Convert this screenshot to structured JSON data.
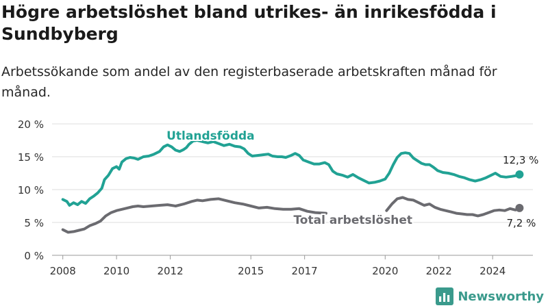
{
  "title": "Högre arbetslöshet bland utrikes- än inrikesfödda i Sundbyberg",
  "subtitle": "Arbetssökande som andel av den registerbaserade arbetskraften månad för månad.",
  "brand": {
    "name": "Newsworthy",
    "logo_icon": "bar-chart-icon"
  },
  "colors": {
    "foreign_born": "#21a294",
    "total": "#6b6b70",
    "grid": "#dddddd",
    "axis_text": "#333333"
  },
  "chart_data": {
    "type": "line",
    "title": "Högre arbetslöshet bland utrikes- än inrikesfödda i Sundbyberg",
    "xlabel": "",
    "ylabel": "",
    "xlim": [
      2007.6,
      2025.5
    ],
    "ylim": [
      0,
      20
    ],
    "y_ticks": [
      0,
      5,
      10,
      15,
      20
    ],
    "y_tick_labels": [
      "0 %",
      "5 %",
      "10 %",
      "15 %",
      "20 %"
    ],
    "x_ticks": [
      2008,
      2010,
      2012,
      2015,
      2017,
      2020,
      2022,
      2024
    ],
    "x_tick_labels": [
      "2008",
      "2010",
      "2012",
      "2015",
      "2017",
      "2020",
      "2022",
      "2024"
    ],
    "grid": true,
    "series": [
      {
        "name": "Utlandsfödda",
        "color": "#21a294",
        "end_label": "12,3 %",
        "points": [
          [
            2008.0,
            8.5
          ],
          [
            2008.15,
            8.2
          ],
          [
            2008.25,
            7.6
          ],
          [
            2008.4,
            8.0
          ],
          [
            2008.55,
            7.7
          ],
          [
            2008.7,
            8.2
          ],
          [
            2008.85,
            7.9
          ],
          [
            2009.0,
            8.6
          ],
          [
            2009.15,
            9.0
          ],
          [
            2009.3,
            9.5
          ],
          [
            2009.45,
            10.2
          ],
          [
            2009.55,
            11.5
          ],
          [
            2009.7,
            12.2
          ],
          [
            2009.85,
            13.2
          ],
          [
            2010.0,
            13.5
          ],
          [
            2010.1,
            13.1
          ],
          [
            2010.2,
            14.2
          ],
          [
            2010.35,
            14.7
          ],
          [
            2010.5,
            14.9
          ],
          [
            2010.65,
            14.8
          ],
          [
            2010.8,
            14.6
          ],
          [
            2011.0,
            15.0
          ],
          [
            2011.2,
            15.1
          ],
          [
            2011.4,
            15.4
          ],
          [
            2011.6,
            15.8
          ],
          [
            2011.75,
            16.5
          ],
          [
            2011.9,
            16.8
          ],
          [
            2012.05,
            16.5
          ],
          [
            2012.2,
            16.0
          ],
          [
            2012.35,
            15.8
          ],
          [
            2012.5,
            16.1
          ],
          [
            2012.6,
            16.4
          ],
          [
            2012.7,
            16.9
          ],
          [
            2012.85,
            17.4
          ],
          [
            2013.0,
            17.5
          ],
          [
            2013.2,
            17.3
          ],
          [
            2013.4,
            17.1
          ],
          [
            2013.6,
            17.3
          ],
          [
            2013.8,
            17.0
          ],
          [
            2014.0,
            16.7
          ],
          [
            2014.2,
            16.9
          ],
          [
            2014.4,
            16.6
          ],
          [
            2014.6,
            16.5
          ],
          [
            2014.75,
            16.2
          ],
          [
            2014.9,
            15.5
          ],
          [
            2015.05,
            15.1
          ],
          [
            2015.25,
            15.2
          ],
          [
            2015.45,
            15.3
          ],
          [
            2015.65,
            15.4
          ],
          [
            2015.8,
            15.1
          ],
          [
            2016.0,
            15.0
          ],
          [
            2016.15,
            15.0
          ],
          [
            2016.3,
            14.9
          ],
          [
            2016.5,
            15.2
          ],
          [
            2016.65,
            15.5
          ],
          [
            2016.8,
            15.2
          ],
          [
            2016.95,
            14.5
          ],
          [
            2017.15,
            14.2
          ],
          [
            2017.35,
            13.9
          ],
          [
            2017.55,
            13.9
          ],
          [
            2017.75,
            14.1
          ],
          [
            2017.9,
            13.8
          ],
          [
            2018.05,
            12.8
          ],
          [
            2018.2,
            12.4
          ],
          [
            2018.4,
            12.2
          ],
          [
            2018.6,
            11.9
          ],
          [
            2018.8,
            12.3
          ],
          [
            2019.0,
            11.8
          ],
          [
            2019.2,
            11.4
          ],
          [
            2019.4,
            11.0
          ],
          [
            2019.6,
            11.1
          ],
          [
            2019.8,
            11.3
          ],
          [
            2020.0,
            11.6
          ],
          [
            2020.15,
            12.5
          ],
          [
            2020.3,
            13.8
          ],
          [
            2020.45,
            14.9
          ],
          [
            2020.6,
            15.5
          ],
          [
            2020.75,
            15.6
          ],
          [
            2020.9,
            15.5
          ],
          [
            2021.05,
            14.8
          ],
          [
            2021.2,
            14.4
          ],
          [
            2021.35,
            14.0
          ],
          [
            2021.5,
            13.8
          ],
          [
            2021.65,
            13.8
          ],
          [
            2021.8,
            13.4
          ],
          [
            2021.95,
            12.9
          ],
          [
            2022.15,
            12.6
          ],
          [
            2022.35,
            12.5
          ],
          [
            2022.55,
            12.3
          ],
          [
            2022.75,
            12.0
          ],
          [
            2022.95,
            11.8
          ],
          [
            2023.15,
            11.5
          ],
          [
            2023.35,
            11.3
          ],
          [
            2023.55,
            11.5
          ],
          [
            2023.75,
            11.8
          ],
          [
            2023.95,
            12.2
          ],
          [
            2024.1,
            12.5
          ],
          [
            2024.3,
            12.0
          ],
          [
            2024.5,
            11.9
          ],
          [
            2024.7,
            12.0
          ],
          [
            2024.85,
            12.1
          ],
          [
            2025.0,
            12.3
          ]
        ]
      },
      {
        "name": "Total arbetslöshet",
        "color": "#6b6b70",
        "end_label": "7,2 %",
        "points": [
          [
            2008.0,
            3.9
          ],
          [
            2008.2,
            3.5
          ],
          [
            2008.4,
            3.6
          ],
          [
            2008.6,
            3.8
          ],
          [
            2008.8,
            4.0
          ],
          [
            2009.0,
            4.5
          ],
          [
            2009.2,
            4.8
          ],
          [
            2009.4,
            5.2
          ],
          [
            2009.6,
            6.0
          ],
          [
            2009.8,
            6.5
          ],
          [
            2010.0,
            6.8
          ],
          [
            2010.2,
            7.0
          ],
          [
            2010.4,
            7.2
          ],
          [
            2010.6,
            7.4
          ],
          [
            2010.8,
            7.5
          ],
          [
            2011.0,
            7.4
          ],
          [
            2011.3,
            7.5
          ],
          [
            2011.6,
            7.6
          ],
          [
            2011.9,
            7.7
          ],
          [
            2012.2,
            7.5
          ],
          [
            2012.5,
            7.8
          ],
          [
            2012.8,
            8.2
          ],
          [
            2013.0,
            8.4
          ],
          [
            2013.2,
            8.3
          ],
          [
            2013.5,
            8.5
          ],
          [
            2013.8,
            8.6
          ],
          [
            2014.1,
            8.3
          ],
          [
            2014.4,
            8.0
          ],
          [
            2014.7,
            7.8
          ],
          [
            2015.0,
            7.5
          ],
          [
            2015.3,
            7.2
          ],
          [
            2015.6,
            7.3
          ],
          [
            2015.9,
            7.1
          ],
          [
            2016.2,
            7.0
          ],
          [
            2016.5,
            7.0
          ],
          [
            2016.8,
            7.1
          ],
          [
            2017.1,
            6.7
          ],
          [
            2017.4,
            6.5
          ],
          [
            2017.8,
            6.4
          ]
        ],
        "points_after_gap": [
          [
            2020.05,
            6.8
          ],
          [
            2020.25,
            7.8
          ],
          [
            2020.45,
            8.6
          ],
          [
            2020.65,
            8.8
          ],
          [
            2020.85,
            8.5
          ],
          [
            2021.05,
            8.4
          ],
          [
            2021.25,
            8.0
          ],
          [
            2021.45,
            7.6
          ],
          [
            2021.65,
            7.8
          ],
          [
            2021.85,
            7.3
          ],
          [
            2022.05,
            7.0
          ],
          [
            2022.25,
            6.8
          ],
          [
            2022.45,
            6.6
          ],
          [
            2022.65,
            6.4
          ],
          [
            2022.85,
            6.3
          ],
          [
            2023.05,
            6.2
          ],
          [
            2023.25,
            6.2
          ],
          [
            2023.45,
            6.0
          ],
          [
            2023.65,
            6.2
          ],
          [
            2023.85,
            6.5
          ],
          [
            2024.05,
            6.8
          ],
          [
            2024.25,
            6.9
          ],
          [
            2024.45,
            6.8
          ],
          [
            2024.65,
            7.1
          ],
          [
            2024.85,
            6.9
          ],
          [
            2025.0,
            7.2
          ]
        ]
      }
    ]
  }
}
